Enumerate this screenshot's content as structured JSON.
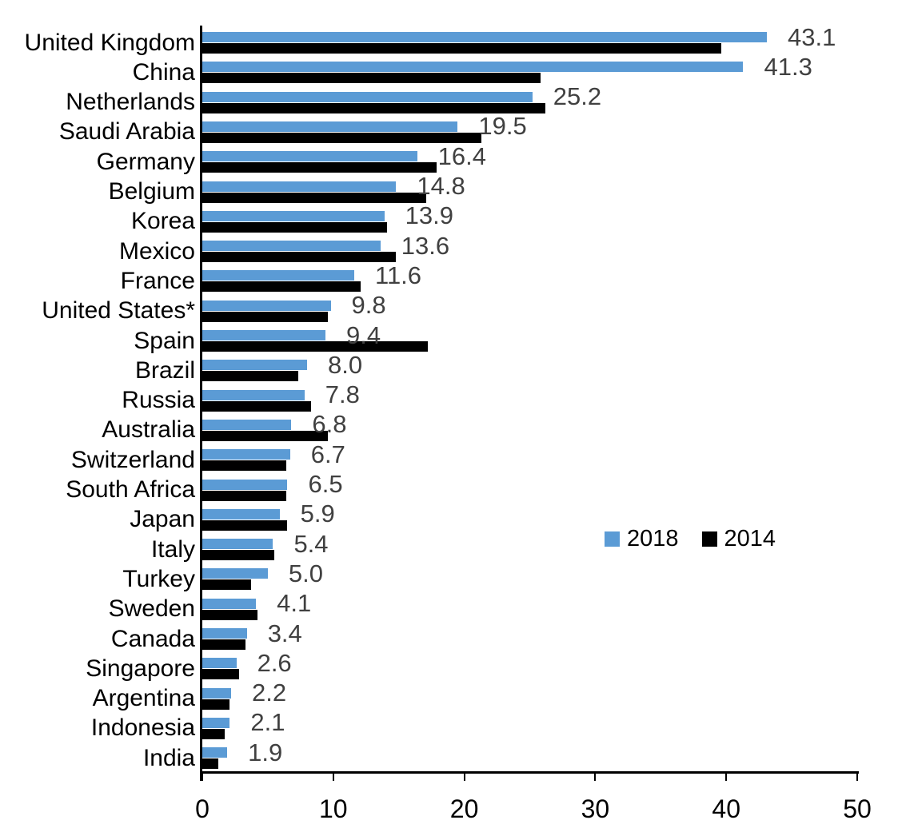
{
  "chart_data": {
    "type": "bar",
    "orientation": "horizontal",
    "title": "",
    "categories": [
      "United Kingdom",
      "China",
      "Netherlands",
      "Saudi Arabia",
      "Germany",
      "Belgium",
      "Korea",
      "Mexico",
      "France",
      "United States*",
      "Spain",
      "Brazil",
      "Russia",
      "Australia",
      "Switzerland",
      "South Africa",
      "Japan",
      "Italy",
      "Turkey",
      "Sweden",
      "Canada",
      "Singapore",
      "Argentina",
      "Indonesia",
      "India"
    ],
    "series": [
      {
        "name": "2018",
        "color": "#5B9BD5",
        "values": [
          43.1,
          41.3,
          25.2,
          19.5,
          16.4,
          14.8,
          13.9,
          13.6,
          11.6,
          9.8,
          9.4,
          8.0,
          7.8,
          6.8,
          6.7,
          6.5,
          5.9,
          5.4,
          5.0,
          4.1,
          3.4,
          2.6,
          2.2,
          2.1,
          1.9
        ],
        "data_labels": [
          "43.1",
          "41.3",
          "25.2",
          "19.5",
          "16.4",
          "14.8",
          "13.9",
          "13.6",
          "11.6",
          "9.8",
          "9.4",
          "8.0",
          "7.8",
          "6.8",
          "6.7",
          "6.5",
          "5.9",
          "5.4",
          "5.0",
          "4.1",
          "3.4",
          "2.6",
          "2.2",
          "2.1",
          "1.9"
        ]
      },
      {
        "name": "2014",
        "color": "#000000",
        "values": [
          39.6,
          25.8,
          26.2,
          21.3,
          17.9,
          17.1,
          14.1,
          14.8,
          12.1,
          9.6,
          17.2,
          7.3,
          8.3,
          9.6,
          6.4,
          6.4,
          6.5,
          5.5,
          3.7,
          4.2,
          3.3,
          2.8,
          2.1,
          1.7,
          1.2
        ]
      }
    ],
    "x_axis": {
      "min": 0,
      "max": 50,
      "tick_interval": 10,
      "tick_labels": [
        "0",
        "10",
        "20",
        "30",
        "40",
        "50"
      ]
    },
    "y_axis": {
      "label": ""
    },
    "legend": {
      "position": "middle-right",
      "entries": [
        "2018",
        "2014"
      ]
    },
    "grid": false,
    "data_label_color": "#404040",
    "axis_color": "#000000"
  }
}
